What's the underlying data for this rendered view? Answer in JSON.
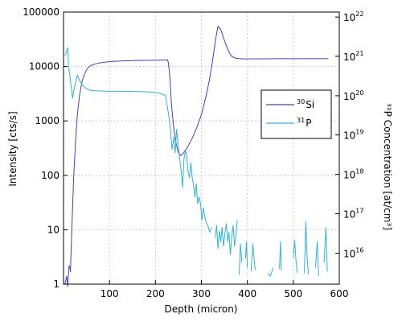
{
  "chart_data": {
    "type": "line",
    "xlabel": "Depth (micron)",
    "ylabel_left": "Intensity [cts/s]",
    "ylabel_right": "³¹P Concentration [at/cm³]",
    "xlim": [
      0,
      600
    ],
    "x_ticks": [
      100,
      200,
      300,
      400,
      500,
      600
    ],
    "y_left_lim": [
      1,
      100000
    ],
    "y_left_scale": "log",
    "y_left_ticks": [
      {
        "value": 1,
        "label": "1"
      },
      {
        "value": 10,
        "label": "10"
      },
      {
        "value": 100,
        "label": "100"
      },
      {
        "value": 1000,
        "label": "1000"
      },
      {
        "value": 10000,
        "label": "10000"
      },
      {
        "value": 100000,
        "label": "100000"
      }
    ],
    "y_right_scale": "log",
    "y_right_ticks": [
      {
        "exp": "16",
        "y_left_equiv": 3.7
      },
      {
        "exp": "17",
        "y_left_equiv": 19.7
      },
      {
        "exp": "18",
        "y_left_equiv": 104
      },
      {
        "exp": "19",
        "y_left_equiv": 552
      },
      {
        "exp": "20",
        "y_left_equiv": 2900
      },
      {
        "exp": "21",
        "y_left_equiv": 15400
      },
      {
        "exp": "22",
        "y_left_equiv": 81000
      }
    ],
    "grid": true,
    "legend_position": "right",
    "series": [
      {
        "name": "30 Si",
        "label_mass": "30",
        "label_element": "Si",
        "color": "#4b3bc9",
        "points": [
          [
            3,
            1.0
          ],
          [
            5,
            1.2
          ],
          [
            7,
            1.4
          ],
          [
            9,
            0.9
          ],
          [
            12,
            2.2
          ],
          [
            14,
            2.0
          ],
          [
            15,
            1.7
          ],
          [
            18,
            10
          ],
          [
            22,
            90
          ],
          [
            26,
            400
          ],
          [
            30,
            1300
          ],
          [
            35,
            3000
          ],
          [
            40,
            5200
          ],
          [
            45,
            7000
          ],
          [
            50,
            8700
          ],
          [
            55,
            9800
          ],
          [
            60,
            10500
          ],
          [
            70,
            11200
          ],
          [
            80,
            11700
          ],
          [
            100,
            12300
          ],
          [
            130,
            12700
          ],
          [
            160,
            12900
          ],
          [
            190,
            13000
          ],
          [
            210,
            13100
          ],
          [
            226,
            13200
          ],
          [
            228,
            12000
          ],
          [
            231,
            7000
          ],
          [
            235,
            2000
          ],
          [
            240,
            700
          ],
          [
            245,
            380
          ],
          [
            250,
            260
          ],
          [
            255,
            230
          ],
          [
            260,
            250
          ],
          [
            270,
            330
          ],
          [
            280,
            480
          ],
          [
            290,
            750
          ],
          [
            300,
            1300
          ],
          [
            310,
            2800
          ],
          [
            318,
            6000
          ],
          [
            325,
            14000
          ],
          [
            331,
            32000
          ],
          [
            336,
            55000
          ],
          [
            342,
            48000
          ],
          [
            350,
            30000
          ],
          [
            358,
            20000
          ],
          [
            365,
            15500
          ],
          [
            375,
            14100
          ],
          [
            390,
            13800
          ],
          [
            420,
            13800
          ],
          [
            460,
            13900
          ],
          [
            500,
            13900
          ],
          [
            540,
            13900
          ],
          [
            576,
            13900
          ]
        ]
      },
      {
        "name": "31 P",
        "label_mass": "31",
        "label_element": "P",
        "color": "#2ab5d6",
        "segments": [
          [
            [
              3,
              16000
            ],
            [
              6,
              18000
            ],
            [
              9,
              22000
            ],
            [
              11,
              10000
            ],
            [
              14,
              6500
            ],
            [
              17,
              4000
            ],
            [
              20,
              2600
            ],
            [
              23,
              3800
            ],
            [
              26,
              5000
            ],
            [
              30,
              7000
            ],
            [
              34,
              5800
            ],
            [
              38,
              5000
            ],
            [
              42,
              4500
            ],
            [
              48,
              4000
            ],
            [
              55,
              3700
            ],
            [
              65,
              3600
            ],
            [
              80,
              3550
            ],
            [
              100,
              3500
            ],
            [
              130,
              3500
            ],
            [
              160,
              3450
            ],
            [
              190,
              3400
            ],
            [
              205,
              3300
            ],
            [
              215,
              3100
            ],
            [
              222,
              2900
            ],
            [
              226,
              1800
            ],
            [
              230,
              1100
            ],
            [
              233,
              650
            ],
            [
              236,
              300
            ],
            [
              240,
              500
            ],
            [
              243,
              260
            ],
            [
              246,
              700
            ],
            [
              249,
              400
            ],
            [
              252,
              230
            ],
            [
              256,
              120
            ],
            [
              259,
              60
            ],
            [
              262,
              200
            ],
            [
              265,
              280
            ],
            [
              268,
              240
            ],
            [
              271,
              120
            ],
            [
              274,
              90
            ],
            [
              277,
              170
            ],
            [
              280,
              90
            ],
            [
              283,
              65
            ],
            [
              286,
              40
            ],
            [
              289,
              70
            ],
            [
              292,
              30
            ],
            [
              295,
              40
            ],
            [
              298,
              30
            ],
            [
              301,
              15
            ],
            [
              304,
              25
            ],
            [
              307,
              18
            ],
            [
              310,
              14
            ],
            [
              314,
              12
            ],
            [
              318,
              9
            ],
            [
              322,
              11
            ]
          ],
          [
            [
              330,
              7.0
            ],
            [
              333,
              12
            ],
            [
              336,
              4.5
            ],
            [
              339,
              9.5
            ],
            [
              342,
              6.0
            ],
            [
              345,
              11
            ],
            [
              348,
              5.0
            ],
            [
              351,
              8.5
            ],
            [
              354,
              13
            ],
            [
              357,
              6.0
            ],
            [
              360,
              9.0
            ],
            [
              363,
              3.5
            ],
            [
              366,
              7.5
            ],
            [
              369,
              12
            ],
            [
              372,
              5.0
            ],
            [
              375,
              8.0
            ],
            [
              378,
              15
            ]
          ],
          [
            [
              382,
              1.5
            ],
            [
              385,
              5.5
            ],
            [
              388,
              2.5
            ]
          ],
          [
            [
              396,
              3.0
            ],
            [
              398,
              6.0
            ],
            [
              400,
              2.0
            ]
          ],
          [
            [
              408,
              1.7
            ],
            [
              412,
              5.5
            ],
            [
              416,
              2.2
            ],
            [
              418,
              1.8
            ]
          ],
          [
            [
              445,
              1.6
            ],
            [
              450,
              1.4
            ],
            [
              456,
              2.0
            ]
          ],
          [
            [
              470,
              1.9
            ],
            [
              472,
              6.0
            ],
            [
              474,
              1.8
            ]
          ],
          [
            [
              500,
              3.0
            ],
            [
              503,
              6.5
            ],
            [
              506,
              2.5
            ],
            [
              509,
              1.6
            ]
          ],
          [
            [
              524,
              1.6
            ],
            [
              527,
              14
            ],
            [
              530,
              3.0
            ],
            [
              533,
              1.5
            ]
          ],
          [
            [
              548,
              2.0
            ],
            [
              552,
              6.0
            ],
            [
              555,
              1.4
            ]
          ],
          [
            [
              567,
              2.5
            ],
            [
              571,
              11
            ],
            [
              574,
              1.7
            ]
          ]
        ]
      }
    ]
  }
}
